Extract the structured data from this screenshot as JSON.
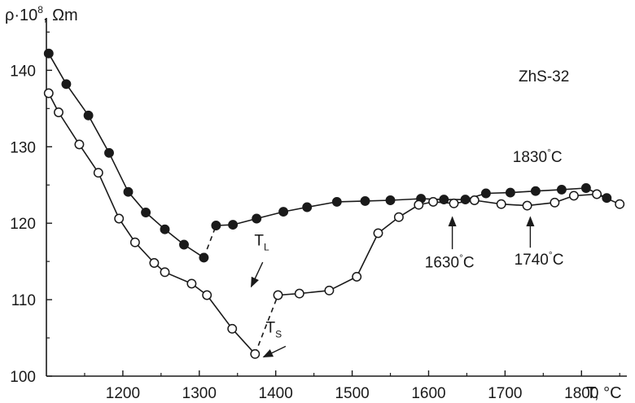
{
  "chart_data": {
    "type": "scatter",
    "title": "",
    "sample_label": "ZhS-32",
    "xlabel": {
      "main": "T, ",
      "unit": "°C"
    },
    "ylabel": {
      "rho": "ρ·10",
      "exp": "8",
      "unit": ", Ωm"
    },
    "xlim": [
      1100,
      1870
    ],
    "ylim": [
      100,
      146
    ],
    "xticks": [
      1200,
      1300,
      1400,
      1500,
      1600,
      1700,
      1800
    ],
    "yticks": [
      100,
      110,
      120,
      130,
      140
    ],
    "grid": false,
    "series": [
      {
        "marker": "filled-circle",
        "color": "#1a1a1a",
        "segments": [
          {
            "style": "solid",
            "points": [
              [
                1103,
                142.2
              ],
              [
                1126,
                138.2
              ],
              [
                1155,
                134.1
              ],
              [
                1182,
                129.2
              ],
              [
                1207,
                124.1
              ],
              [
                1230,
                121.4
              ],
              [
                1255,
                119.2
              ],
              [
                1280,
                117.2
              ],
              [
                1306,
                115.5
              ]
            ]
          },
          {
            "style": "dashed",
            "points": [
              [
                1306,
                115.5
              ],
              [
                1322,
                119.7
              ]
            ]
          },
          {
            "style": "solid",
            "points": [
              [
                1322,
                119.7
              ],
              [
                1344,
                119.8
              ],
              [
                1375,
                120.6
              ],
              [
                1410,
                121.5
              ],
              [
                1441,
                122.1
              ],
              [
                1480,
                122.8
              ],
              [
                1517,
                122.9
              ],
              [
                1550,
                123.0
              ],
              [
                1590,
                123.2
              ],
              [
                1620,
                123.1
              ],
              [
                1648,
                123.1
              ],
              [
                1675,
                123.9
              ],
              [
                1707,
                124.0
              ],
              [
                1740,
                124.2
              ],
              [
                1774,
                124.4
              ],
              [
                1806,
                124.6
              ],
              [
                1833,
                123.3
              ]
            ]
          }
        ]
      },
      {
        "marker": "open-circle",
        "color": "#1a1a1a",
        "segments": [
          {
            "style": "solid",
            "points": [
              [
                1103,
                137
              ],
              [
                1116,
                134.5
              ],
              [
                1143,
                130.3
              ],
              [
                1168,
                126.6
              ],
              [
                1195,
                120.6
              ],
              [
                1216,
                117.5
              ],
              [
                1241,
                114.8
              ],
              [
                1255,
                113.6
              ],
              [
                1290,
                112.1
              ],
              [
                1310,
                110.6
              ],
              [
                1343,
                106.2
              ],
              [
                1373,
                102.9
              ]
            ]
          },
          {
            "style": "dashed",
            "points": [
              [
                1373,
                102.9
              ],
              [
                1403,
                110.6
              ]
            ]
          },
          {
            "style": "solid",
            "points": [
              [
                1403,
                110.6
              ],
              [
                1431,
                110.8
              ],
              [
                1470,
                111.2
              ],
              [
                1506,
                113.0
              ],
              [
                1534,
                118.7
              ],
              [
                1561,
                120.8
              ],
              [
                1587,
                122.4
              ],
              [
                1606,
                122.8
              ],
              [
                1633,
                122.6
              ],
              [
                1660,
                123.0
              ],
              [
                1695,
                122.5
              ],
              [
                1729,
                122.3
              ],
              [
                1765,
                122.7
              ],
              [
                1790,
                123.6
              ],
              [
                1820,
                123.8
              ],
              [
                1850,
                122.5
              ]
            ]
          }
        ]
      }
    ],
    "annotations": [
      {
        "text": "1830",
        "unit": "°C",
        "anchor": [
          1710,
          128
        ]
      },
      {
        "text": "1630",
        "unit": "°C",
        "anchor": [
          1595,
          114.2
        ],
        "arrow_from": [
          1631,
          116.6
        ],
        "arrow_to": [
          1631,
          120.8
        ]
      },
      {
        "text": "1740",
        "unit": "°C",
        "anchor": [
          1712,
          114.6
        ],
        "arrow_from": [
          1733,
          116.8
        ],
        "arrow_to": [
          1733,
          120.8
        ]
      },
      {
        "text": "T",
        "sub": "L",
        "anchor": [
          1372,
          117.1
        ],
        "arrow_from": [
          1383,
          114.9
        ],
        "arrow_to": [
          1368,
          111.7
        ]
      },
      {
        "text": "T",
        "sub": "S",
        "anchor": [
          1387,
          105.7
        ],
        "arrow_from": [
          1413,
          103.9
        ],
        "arrow_to": [
          1384,
          102.5
        ]
      }
    ]
  }
}
